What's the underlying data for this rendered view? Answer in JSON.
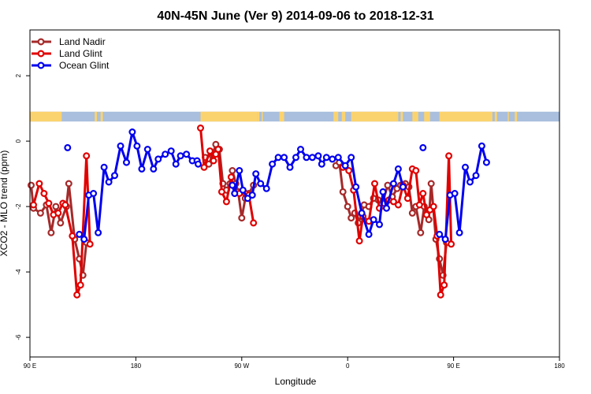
{
  "chart_data": {
    "type": "line",
    "title": "40N-45N June (Ver 9)   2014-09-06 to 2018-12-31",
    "xlabel": "Longitude",
    "ylabel": "XCO2 - MLO trend (ppm)",
    "xlim": [
      90,
      540
    ],
    "ylim": [
      -6.6,
      3.4
    ],
    "x_ticks": [
      {
        "value": 90,
        "label": "90 E"
      },
      {
        "value": 180,
        "label": "180"
      },
      {
        "value": 270,
        "label": "90 W"
      },
      {
        "value": 360,
        "label": "0"
      },
      {
        "value": 450,
        "label": "90 E"
      },
      {
        "value": 540,
        "label": "180"
      }
    ],
    "y_ticks": [
      -6,
      -4,
      -2,
      0,
      2
    ],
    "grid": false,
    "legend_position": "top-left",
    "land_sea_bar": {
      "y_range": [
        0.6,
        0.9
      ],
      "land_color": "#fbd36e",
      "ocean_color": "#a9bfdd",
      "land_segments": [
        [
          90,
          117
        ],
        [
          145,
          147
        ],
        [
          150,
          152
        ],
        [
          235,
          283
        ],
        [
          283,
          285
        ],
        [
          287,
          288
        ],
        [
          302,
          306
        ],
        [
          348,
          352
        ],
        [
          355,
          358
        ],
        [
          363,
          403
        ],
        [
          405,
          407
        ],
        [
          415,
          420
        ],
        [
          425,
          430
        ],
        [
          438,
          483
        ],
        [
          485,
          487
        ],
        [
          496,
          497
        ],
        [
          502,
          504
        ]
      ]
    },
    "series": [
      {
        "name": "Land Nadir",
        "color": "#a52a2a",
        "segments": [
          [
            [
              91,
              -1.35
            ],
            [
              93,
              -2.05
            ],
            [
              99,
              -2.2
            ],
            [
              104,
              -1.95
            ],
            [
              108,
              -2.8
            ],
            [
              112,
              -2.0
            ],
            [
              116,
              -2.5
            ],
            [
              121,
              -2.0
            ],
            [
              123,
              -1.3
            ],
            [
              128,
              -3.0
            ],
            [
              132,
              -3.6
            ],
            [
              135,
              -4.1
            ],
            [
              138,
              -3.1
            ]
          ],
          [
            [
              239,
              -0.5
            ],
            [
              242,
              -0.7
            ],
            [
              245,
              -0.45
            ],
            [
              248,
              -0.1
            ],
            [
              251,
              -0.25
            ],
            [
              254,
              -1.3
            ],
            [
              257,
              -1.5
            ],
            [
              260,
              -1.3
            ],
            [
              262,
              -0.9
            ],
            [
              265,
              -1.3
            ],
            [
              267,
              -1.55
            ],
            [
              270,
              -2.35
            ],
            [
              273,
              -1.75
            ],
            [
              276,
              -1.6
            ],
            [
              280,
              -1.35
            ]
          ],
          [
            [
              350,
              -0.75
            ],
            [
              353,
              -0.65
            ],
            [
              356,
              -1.55
            ],
            [
              360,
              -2.0
            ],
            [
              363,
              -2.35
            ],
            [
              366,
              -2.2
            ],
            [
              369,
              -2.5
            ],
            [
              371,
              -2.3
            ],
            [
              374,
              -1.95
            ],
            [
              378,
              -2.0
            ],
            [
              382,
              -1.75
            ],
            [
              386,
              -1.8
            ],
            [
              390,
              -1.85
            ],
            [
              394,
              -1.35
            ],
            [
              398,
              -1.7
            ],
            [
              402,
              -1.45
            ],
            [
              405,
              -1.35
            ],
            [
              409,
              -1.3
            ],
            [
              412,
              -1.4
            ],
            [
              415,
              -2.2
            ],
            [
              418,
              -2.0
            ],
            [
              422,
              -2.8
            ],
            [
              425,
              -2.0
            ],
            [
              429,
              -2.4
            ],
            [
              431,
              -1.3
            ],
            [
              435,
              -3.0
            ],
            [
              438,
              -3.6
            ],
            [
              441,
              -4.1
            ],
            [
              444,
              -3.1
            ]
          ]
        ]
      },
      {
        "name": "Land Glint",
        "color": "#e00000",
        "segments": [
          [
            [
              93,
              -1.95
            ],
            [
              98,
              -1.3
            ],
            [
              102,
              -1.6
            ],
            [
              106,
              -1.9
            ],
            [
              110,
              -2.25
            ],
            [
              114,
              -2.2
            ],
            [
              118,
              -1.9
            ],
            [
              120,
              -1.95
            ],
            [
              126,
              -2.9
            ],
            [
              130,
              -4.7
            ],
            [
              133,
              -4.4
            ],
            [
              138,
              -0.45
            ],
            [
              141,
              -3.15
            ]
          ],
          [
            [
              235,
              0.4
            ],
            [
              238,
              -0.8
            ],
            [
              243,
              -0.3
            ],
            [
              246,
              -0.6
            ],
            [
              248,
              -0.4
            ],
            [
              250,
              -0.25
            ],
            [
              253,
              -1.55
            ],
            [
              257,
              -1.85
            ],
            [
              261,
              -1.1
            ],
            [
              264,
              -1.6
            ],
            [
              268,
              -1.6
            ],
            [
              273,
              -1.6
            ],
            [
              276,
              -1.65
            ],
            [
              280,
              -2.5
            ]
          ],
          [
            [
              356,
              -0.8
            ],
            [
              361,
              -0.9
            ],
            [
              365,
              -1.5
            ],
            [
              370,
              -3.05
            ],
            [
              373,
              -2.3
            ],
            [
              378,
              -2.45
            ],
            [
              383,
              -1.3
            ],
            [
              387,
              -2.05
            ],
            [
              391,
              -1.9
            ],
            [
              395,
              -1.8
            ],
            [
              399,
              -1.85
            ],
            [
              403,
              -1.95
            ],
            [
              407,
              -1.35
            ],
            [
              411,
              -1.75
            ],
            [
              415,
              -0.85
            ],
            [
              418,
              -0.9
            ],
            [
              421,
              -1.95
            ],
            [
              424,
              -1.6
            ],
            [
              427,
              -2.25
            ],
            [
              430,
              -2.1
            ],
            [
              433,
              -2.0
            ],
            [
              436,
              -2.9
            ],
            [
              439,
              -4.7
            ],
            [
              442,
              -4.4
            ],
            [
              446,
              -0.45
            ],
            [
              448,
              -3.15
            ]
          ]
        ]
      },
      {
        "name": "Ocean Glint",
        "color": "#0000ee",
        "segments": [
          [
            [
              122,
              -0.2
            ]
          ],
          [
            [
              132,
              -2.85
            ],
            [
              136,
              -3.0
            ],
            [
              140,
              -1.65
            ],
            [
              144,
              -1.6
            ],
            [
              148,
              -2.8
            ],
            [
              153,
              -0.8
            ],
            [
              157,
              -1.25
            ],
            [
              162,
              -1.05
            ],
            [
              167,
              -0.15
            ],
            [
              172,
              -0.65
            ],
            [
              177,
              0.28
            ],
            [
              181,
              -0.15
            ],
            [
              185,
              -0.85
            ],
            [
              190,
              -0.25
            ],
            [
              195,
              -0.85
            ],
            [
              199,
              -0.55
            ],
            [
              205,
              -0.4
            ],
            [
              210,
              -0.3
            ],
            [
              214,
              -0.7
            ],
            [
              218,
              -0.45
            ],
            [
              223,
              -0.4
            ],
            [
              228,
              -0.6
            ],
            [
              232,
              -0.6
            ],
            [
              233,
              -0.7
            ]
          ],
          [
            [
              262,
              -1.35
            ],
            [
              264,
              -1.6
            ],
            [
              268,
              -0.9
            ],
            [
              271,
              -1.5
            ],
            [
              275,
              -1.75
            ],
            [
              279,
              -1.65
            ],
            [
              282,
              -1.0
            ],
            [
              286,
              -1.3
            ],
            [
              291,
              -1.45
            ],
            [
              296,
              -0.7
            ],
            [
              301,
              -0.5
            ],
            [
              306,
              -0.5
            ],
            [
              311,
              -0.8
            ],
            [
              316,
              -0.5
            ],
            [
              320,
              -0.25
            ],
            [
              325,
              -0.5
            ],
            [
              330,
              -0.5
            ],
            [
              335,
              -0.45
            ],
            [
              338,
              -0.7
            ],
            [
              342,
              -0.5
            ],
            [
              347,
              -0.55
            ],
            [
              352,
              -0.5
            ],
            [
              358,
              -0.75
            ],
            [
              363,
              -0.5
            ],
            [
              367,
              -1.4
            ],
            [
              372,
              -2.2
            ],
            [
              378,
              -2.85
            ],
            [
              382,
              -2.4
            ],
            [
              387,
              -2.55
            ],
            [
              390,
              -1.55
            ],
            [
              393,
              -2.05
            ],
            [
              399,
              -1.3
            ],
            [
              403,
              -0.85
            ],
            [
              407,
              -1.4
            ]
          ],
          [
            [
              424,
              -0.2
            ]
          ],
          [
            [
              438,
              -2.85
            ],
            [
              443,
              -3.0
            ],
            [
              447,
              -1.65
            ],
            [
              451,
              -1.6
            ],
            [
              455,
              -2.8
            ],
            [
              460,
              -0.8
            ],
            [
              464,
              -1.25
            ],
            [
              469,
              -1.05
            ],
            [
              474,
              -0.15
            ],
            [
              478,
              -0.65
            ]
          ]
        ]
      }
    ]
  }
}
